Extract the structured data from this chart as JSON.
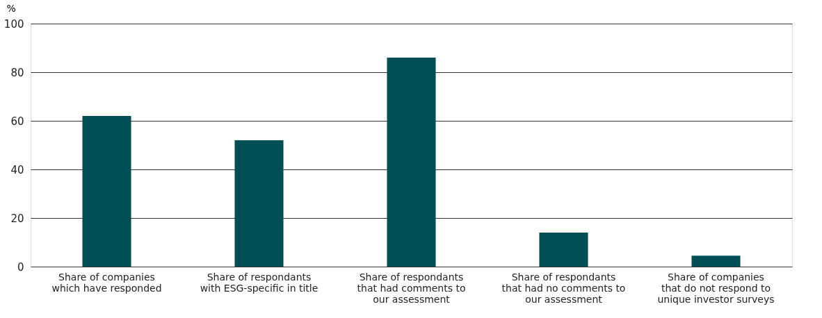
{
  "chart_data": {
    "type": "bar",
    "ylabel": "%",
    "categories": [
      "Share of companies\nwhich have responded",
      "Share of respondants\nwith ESG-specific in title",
      "Share of respondants\nthat had comments to\nour assessment",
      "Share of respondants\nthat had no comments to\nour assessment",
      "Share of companies\nthat do not respond to\nunique investor surveys"
    ],
    "values": [
      62,
      52,
      86,
      14,
      4.5
    ],
    "color": "#004f55",
    "ylim": [
      0,
      100
    ],
    "yticks": [
      0,
      20,
      40,
      60,
      80,
      100
    ],
    "grid": "y"
  }
}
